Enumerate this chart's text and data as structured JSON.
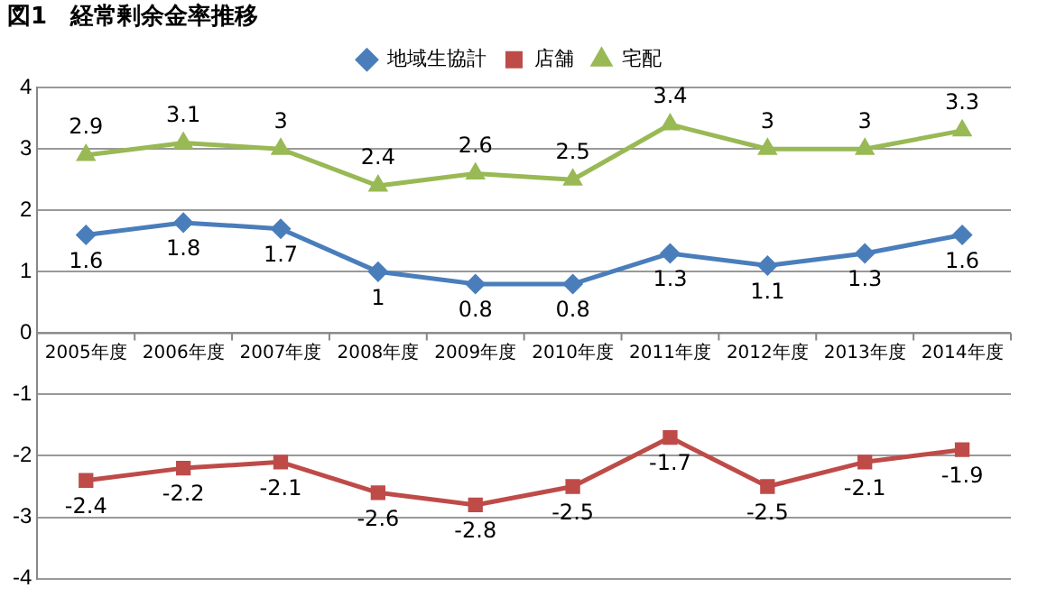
{
  "chart_data": {
    "type": "line",
    "title": "図1　経常剰余金率推移",
    "categories": [
      "2005年度",
      "2006年度",
      "2007年度",
      "2008年度",
      "2009年度",
      "2010年度",
      "2011年度",
      "2012年度",
      "2013年度",
      "2014年度"
    ],
    "series": [
      {
        "name": "地域生協計",
        "color": "#4a7ebb",
        "marker": "diamond",
        "values": [
          1.6,
          1.8,
          1.7,
          1,
          0.8,
          0.8,
          1.3,
          1.1,
          1.3,
          1.6
        ]
      },
      {
        "name": "店舗",
        "color": "#be4b48",
        "marker": "square",
        "values": [
          -2.4,
          -2.2,
          -2.1,
          -2.6,
          -2.8,
          -2.5,
          -1.7,
          -2.5,
          -2.1,
          -1.9
        ]
      },
      {
        "name": "宅配",
        "color": "#98b954",
        "marker": "triangle",
        "values": [
          2.9,
          3.1,
          3,
          2.4,
          2.6,
          2.5,
          3.4,
          3,
          3,
          3.3
        ]
      }
    ],
    "ylim": [
      -4,
      4
    ],
    "yticks": [
      -4,
      -3,
      -2,
      -1,
      0,
      1,
      2,
      3,
      4
    ],
    "grid": "y",
    "legend": "top",
    "data_labels": true
  }
}
